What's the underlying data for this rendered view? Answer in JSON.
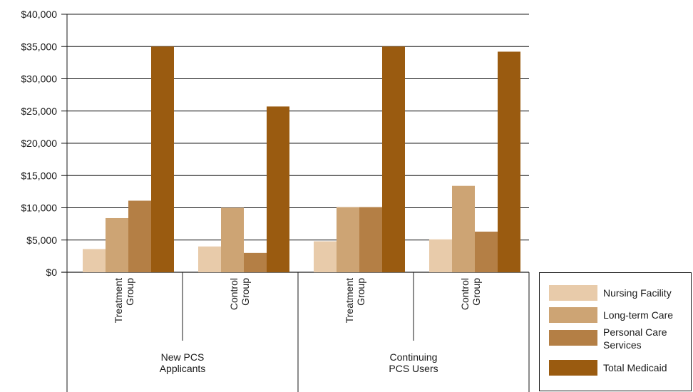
{
  "chart_data": {
    "type": "bar",
    "title": "",
    "xlabel": "",
    "ylabel": "",
    "ylim": [
      0,
      40000
    ],
    "y_ticks": [
      "$0",
      "$5,000",
      "$10,000",
      "$15,000",
      "$20,000",
      "$25,000",
      "$30,000",
      "$35,000",
      "$40,000"
    ],
    "groups": [
      {
        "label": [
          "New PCS",
          "Applicants"
        ],
        "categories": [
          [
            "Treatment",
            "Group"
          ],
          [
            "Control",
            "Group"
          ]
        ]
      },
      {
        "label": [
          "Continuing",
          "PCS Users"
        ],
        "categories": [
          [
            "Treatment",
            "Group"
          ],
          [
            "Control",
            "Group"
          ]
        ]
      }
    ],
    "categories": [
      "New PCS Applicants - Treatment Group",
      "New PCS Applicants - Control Group",
      "Continuing PCS Users - Treatment Group",
      "Continuing PCS Users - Control Group"
    ],
    "series": [
      {
        "name": "Nursing Facility",
        "color": "#e8cbaa",
        "values": [
          3600,
          4000,
          4800,
          5100
        ]
      },
      {
        "name": "Long-term Care",
        "color": "#cda474",
        "values": [
          8400,
          10000,
          10100,
          13400
        ]
      },
      {
        "name": "Personal Care",
        "name_lines": [
          "Personal Care",
          "Services"
        ],
        "color": "#b47f45",
        "values": [
          11100,
          3000,
          10100,
          6300
        ]
      },
      {
        "name": "Total Medicaid",
        "color": "#9a5b10",
        "values": [
          35000,
          25700,
          35000,
          34200
        ]
      }
    ],
    "grid": true,
    "legend_position": "bottom-right"
  }
}
